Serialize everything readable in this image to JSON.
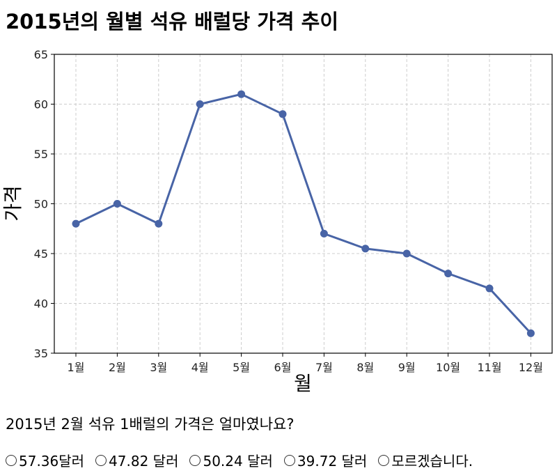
{
  "title": "2015년의 월별 석유 배럴당 가격 추이",
  "chart_data": {
    "type": "line",
    "title": "2015년의 월별 석유 배럴당 가격 추이",
    "xlabel": "월",
    "ylabel": "가격",
    "categories": [
      "1월",
      "2월",
      "3월",
      "4월",
      "5월",
      "6월",
      "7월",
      "8월",
      "9월",
      "10월",
      "11월",
      "12월"
    ],
    "series": [
      {
        "values": [
          48,
          50,
          48,
          60,
          61,
          59,
          47,
          45.5,
          45,
          43,
          41.5,
          37
        ]
      }
    ],
    "ylim": [
      35,
      65
    ],
    "yticks": [
      35,
      40,
      45,
      50,
      55,
      60,
      65
    ],
    "grid": true,
    "line_color": "#4864a6"
  },
  "question": {
    "text": "2015년 2월 석유 1배럴의 가격은 얼마였나요?",
    "options": [
      "57.36달러",
      "47.82 달러",
      "50.24 달러",
      "39.72 달러",
      "모르겠습니다."
    ]
  }
}
